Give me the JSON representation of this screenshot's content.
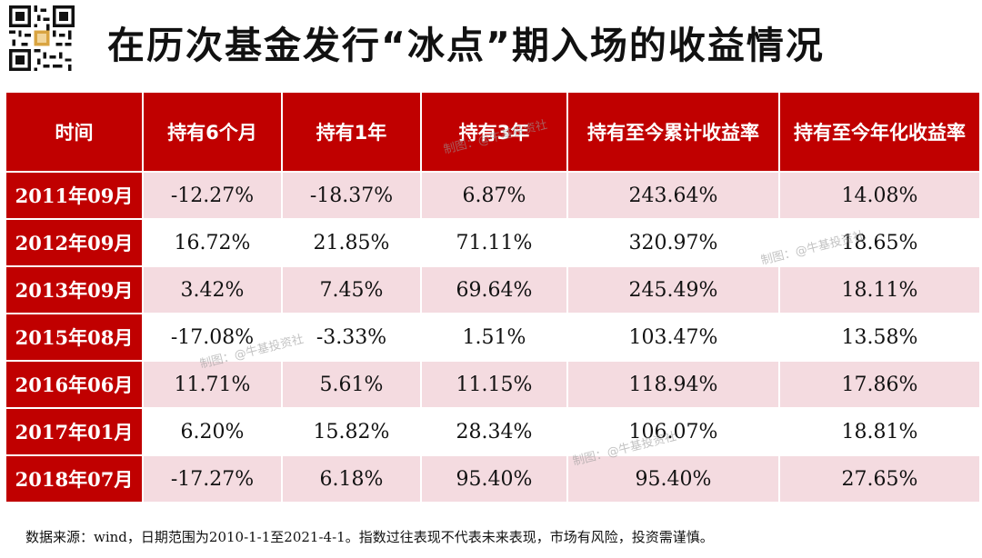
{
  "title": "在历次基金发行“冰点”期入场的收益情况",
  "table": {
    "headers": [
      "时间",
      "持有6个月",
      "持有1年",
      "持有3年",
      "持有至今累计收益率",
      "持有至今年化收益率"
    ],
    "rows": [
      [
        "2011年09月",
        "-12.27%",
        "-18.37%",
        "6.87%",
        "243.64%",
        "14.08%"
      ],
      [
        "2012年09月",
        "16.72%",
        "21.85%",
        "71.11%",
        "320.97%",
        "18.65%"
      ],
      [
        "2013年09月",
        "3.42%",
        "7.45%",
        "69.64%",
        "245.49%",
        "18.11%"
      ],
      [
        "2015年08月",
        "-17.08%",
        "-3.33%",
        "1.51%",
        "103.47%",
        "13.58%"
      ],
      [
        "2016年06月",
        "11.71%",
        "5.61%",
        "11.15%",
        "118.94%",
        "17.86%"
      ],
      [
        "2017年01月",
        "6.20%",
        "15.82%",
        "28.34%",
        "106.07%",
        "18.81%"
      ],
      [
        "2018年07月",
        "-17.27%",
        "6.18%",
        "95.40%",
        "95.40%",
        "27.65%"
      ]
    ]
  },
  "footer": "数据来源：wind，日期范围为2010-1-1至2021-4-1。指数过往表现不代表未来表现，市场有风险，投资需谨慎。",
  "watermark": "制图：@牛基投资社",
  "colors": {
    "header_red": "#c00000",
    "row_pink": "#f4dbe0"
  }
}
